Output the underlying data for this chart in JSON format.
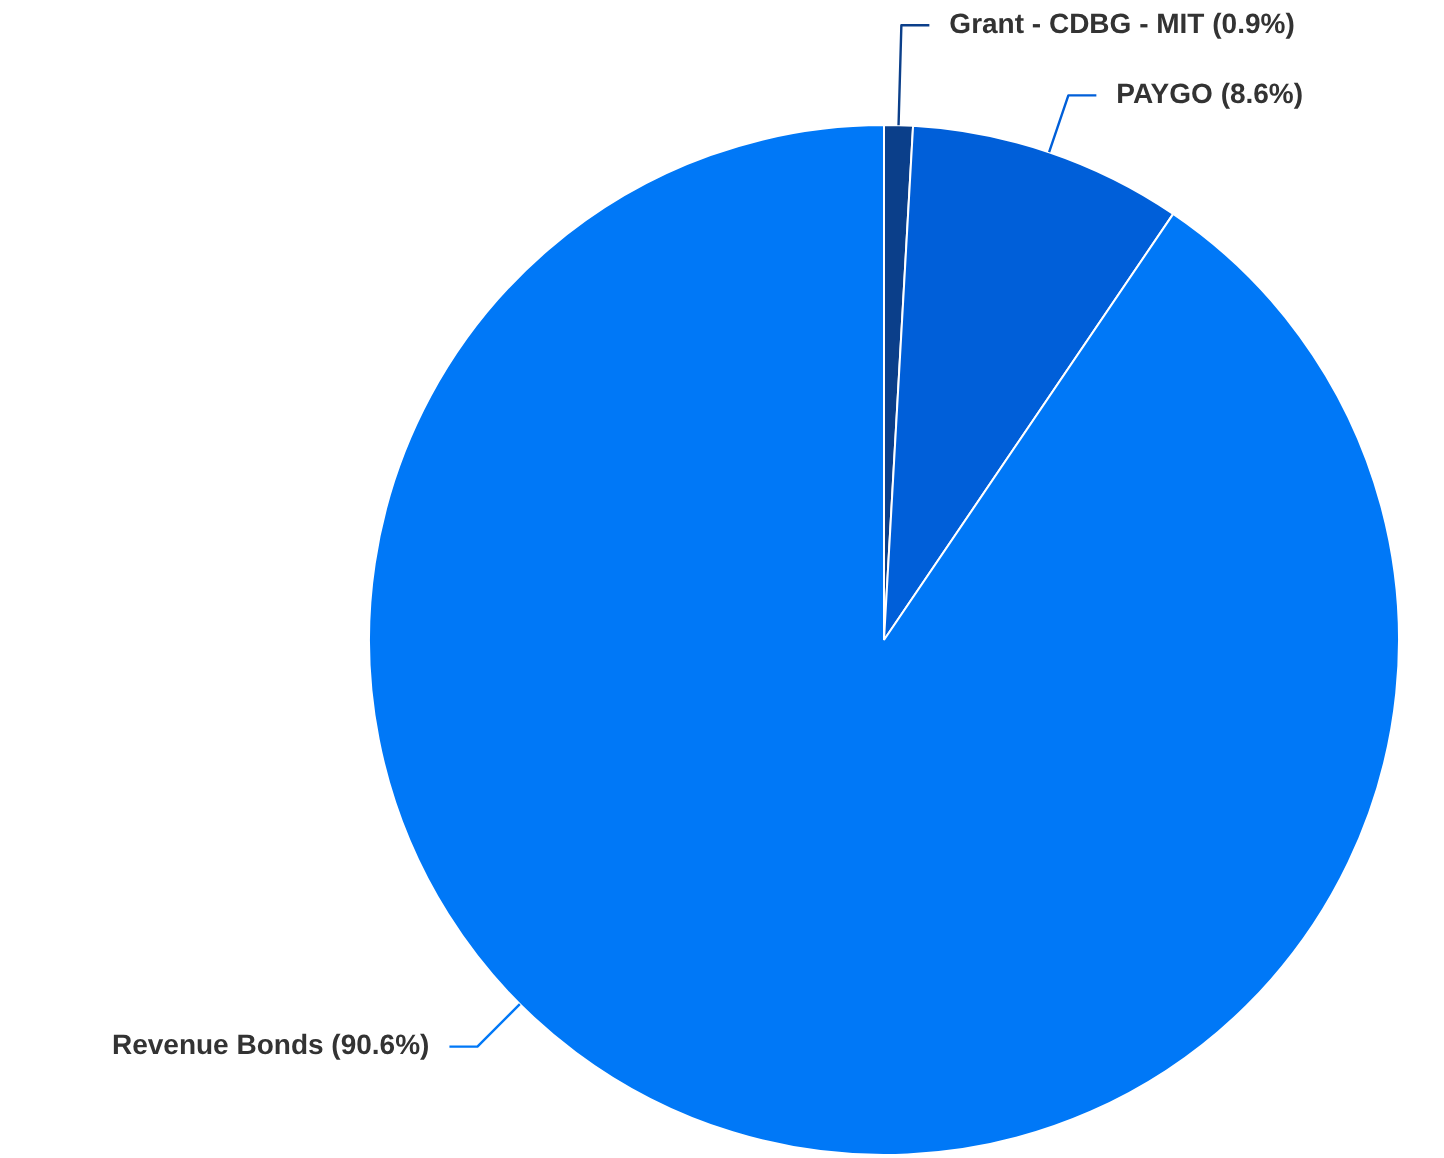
{
  "chart_data": {
    "type": "pie",
    "categories": [
      "Grant - CDBG - MIT",
      "PAYGO",
      "Revenue Bonds"
    ],
    "values": [
      0.9,
      8.6,
      90.6
    ],
    "value_labels": [
      "(0.9%)",
      "(8.6%)",
      "(90.6%)"
    ],
    "colors": [
      "#0b3f8a",
      "#005fd9",
      "#0078f7"
    ],
    "legend": false
  }
}
